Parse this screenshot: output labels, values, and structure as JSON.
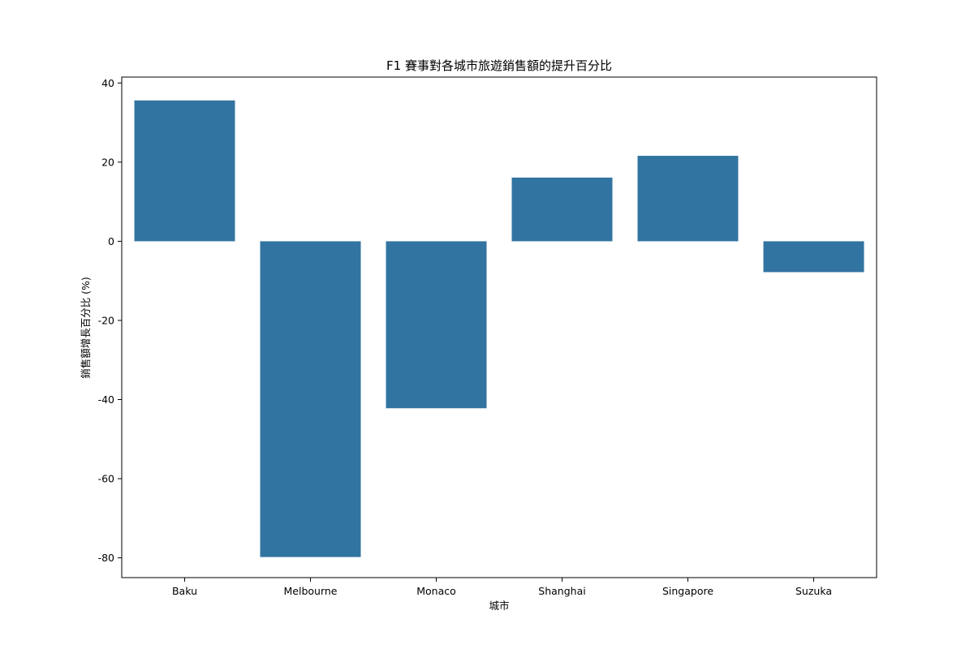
{
  "chart_data": {
    "type": "bar",
    "title": "F1 賽事對各城市旅遊銷售額的提升百分比",
    "xlabel": "城市",
    "ylabel": "銷售額增長百分比 (%)",
    "categories": [
      "Baku",
      "Melbourne",
      "Monaco",
      "Shanghai",
      "Singapore",
      "Suzuka"
    ],
    "values": [
      35.6,
      -79.8,
      -42.2,
      16.1,
      21.6,
      -7.8
    ],
    "ylim": [
      -85,
      41.5
    ],
    "yticks": [
      40,
      20,
      0,
      -20,
      -40,
      -60,
      -80
    ],
    "ytick_labels": [
      "40",
      "20",
      "0",
      "-20",
      "-40",
      "-60",
      "-80"
    ],
    "grid": false,
    "bar_color": "#3274a1"
  }
}
